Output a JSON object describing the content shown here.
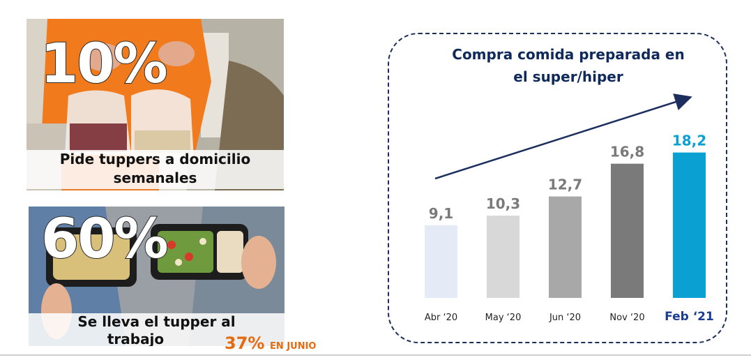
{
  "cards": {
    "top": {
      "stat": "10%",
      "caption_line1": "Pide tuppers a domicilio",
      "caption_line2": "semanales"
    },
    "bottom": {
      "stat": "60%",
      "caption_line1": "Se lleva el tupper al",
      "caption_line2": "trabajo",
      "extra_pct": "37%",
      "extra_note": "EN JUNIO"
    }
  },
  "chart_data": {
    "type": "bar",
    "title": "Compra comida preparada en el super/hiper",
    "title_line1": "Compra comida preparada en",
    "title_line2": "el super/hiper",
    "categories": [
      "Abr ‘20",
      "May ‘20",
      "Jun ‘20",
      "Nov ‘20",
      "Feb ‘21"
    ],
    "values": [
      9.1,
      10.3,
      12.7,
      16.8,
      18.2
    ],
    "value_labels": [
      "9,1",
      "10,3",
      "12,7",
      "16,8",
      "18,2"
    ],
    "bar_colors": [
      "#e4ebf6",
      "#d8d8d8",
      "#a8a8a8",
      "#7a7a7a",
      "#0aa0d2"
    ],
    "label_colors": [
      "#7a7a7a",
      "#7a7a7a",
      "#7a7a7a",
      "#7a7a7a",
      "#0aa0d2"
    ],
    "highlight_category_color": "#1b3d8f",
    "trend_arrow": true,
    "grid": false,
    "legend": "none"
  }
}
